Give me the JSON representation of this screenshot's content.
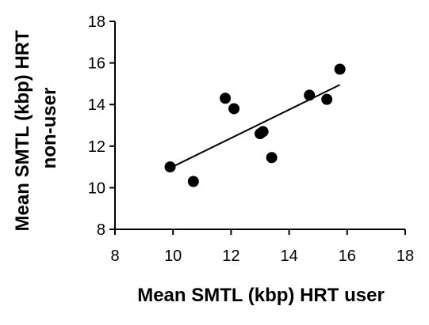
{
  "chart_data": {
    "type": "scatter",
    "title": "",
    "xlabel": "Mean SMTL (kbp) HRT user",
    "ylabel_lines": [
      "Mean SMTL (kbp) HRT",
      "non-user"
    ],
    "xlim": [
      8,
      18
    ],
    "ylim": [
      8,
      18
    ],
    "xticks": [
      8,
      10,
      12,
      14,
      16,
      18
    ],
    "yticks": [
      8,
      10,
      12,
      14,
      16,
      18
    ],
    "grid": false,
    "points": [
      {
        "x": 9.9,
        "y": 11.0
      },
      {
        "x": 10.7,
        "y": 10.3
      },
      {
        "x": 11.8,
        "y": 14.3
      },
      {
        "x": 12.1,
        "y": 13.8
      },
      {
        "x": 13.0,
        "y": 12.6
      },
      {
        "x": 13.1,
        "y": 12.7
      },
      {
        "x": 13.4,
        "y": 11.45
      },
      {
        "x": 14.7,
        "y": 14.45
      },
      {
        "x": 15.3,
        "y": 14.25
      },
      {
        "x": 15.75,
        "y": 15.7
      }
    ],
    "trendline": {
      "x1": 9.9,
      "y1": 10.95,
      "x2": 15.75,
      "y2": 14.95
    },
    "colors": {
      "marker": "#000000",
      "line": "#000000",
      "axis": "#000000"
    }
  }
}
